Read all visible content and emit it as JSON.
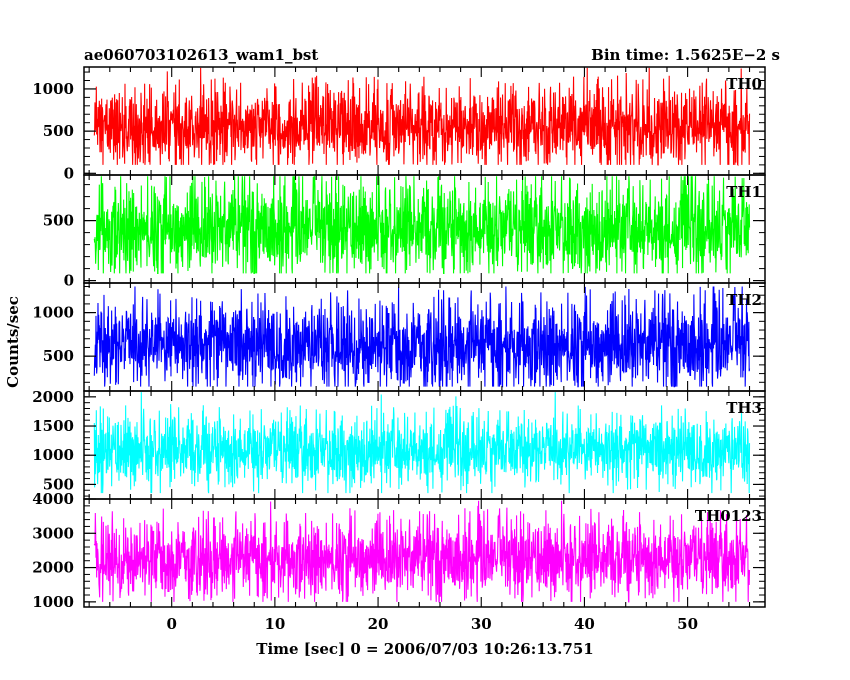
{
  "header": {
    "title": "ae060703102613_wam1_bst",
    "bin_time": "Bin time: 1.5625E−2 s"
  },
  "chart_data": {
    "type": "line",
    "title": "ae060703102613_wam1_bst",
    "xlabel": "Time [sec] 0 = 2006/07/03 10:26:13.751",
    "ylabel": "Counts/sec",
    "xlim": [
      -8.5,
      57.5
    ],
    "x_range": [
      -7.5,
      56
    ],
    "x_ticks": [
      0,
      10,
      20,
      30,
      40,
      50
    ],
    "x_tick_labels": [
      "0",
      "10",
      "20",
      "30",
      "40",
      "50"
    ],
    "grid": false,
    "series": [
      {
        "name": "TH0",
        "color": "#ff0000",
        "ylim": [
          -20,
          1260
        ],
        "yticks": [
          0,
          500,
          1000
        ],
        "ytick_labels": [
          "0",
          "500",
          "1000"
        ],
        "values": [
          100,
          1250
        ],
        "mean": 520,
        "spread": 230,
        "floor": 100,
        "ceiling": 1250
      },
      {
        "name": "TH1",
        "color": "#00ff00",
        "ylim": [
          -20,
          880
        ],
        "yticks": [
          0,
          500
        ],
        "ytick_labels": [
          "0",
          "500"
        ],
        "values": [
          60,
          870
        ],
        "mean": 410,
        "spread": 190,
        "floor": 60,
        "ceiling": 870
      },
      {
        "name": "TH2",
        "color": "#0000ff",
        "ylim": [
          100,
          1340
        ],
        "yticks": [
          500,
          1000
        ],
        "ytick_labels": [
          "500",
          "1000"
        ],
        "values": [
          150,
          1300
        ],
        "mean": 600,
        "spread": 250,
        "floor": 150,
        "ceiling": 1300
      },
      {
        "name": "TH3",
        "color": "#00ffff",
        "ylim": [
          250,
          2100
        ],
        "yticks": [
          500,
          1000,
          1500,
          2000
        ],
        "ytick_labels": [
          "500",
          "1000",
          "1500",
          "2000"
        ],
        "values": [
          350,
          2080
        ],
        "mean": 1050,
        "spread": 300,
        "floor": 350,
        "ceiling": 2080
      },
      {
        "name": "TH0123",
        "color": "#ff00ff",
        "ylim": [
          850,
          4000
        ],
        "yticks": [
          1000,
          2000,
          3000,
          4000
        ],
        "ytick_labels": [
          "1000",
          "2000",
          "3000",
          "4000"
        ],
        "values": [
          1000,
          3950
        ],
        "mean": 2200,
        "spread": 550,
        "floor": 1000,
        "ceiling": 3950
      }
    ]
  }
}
